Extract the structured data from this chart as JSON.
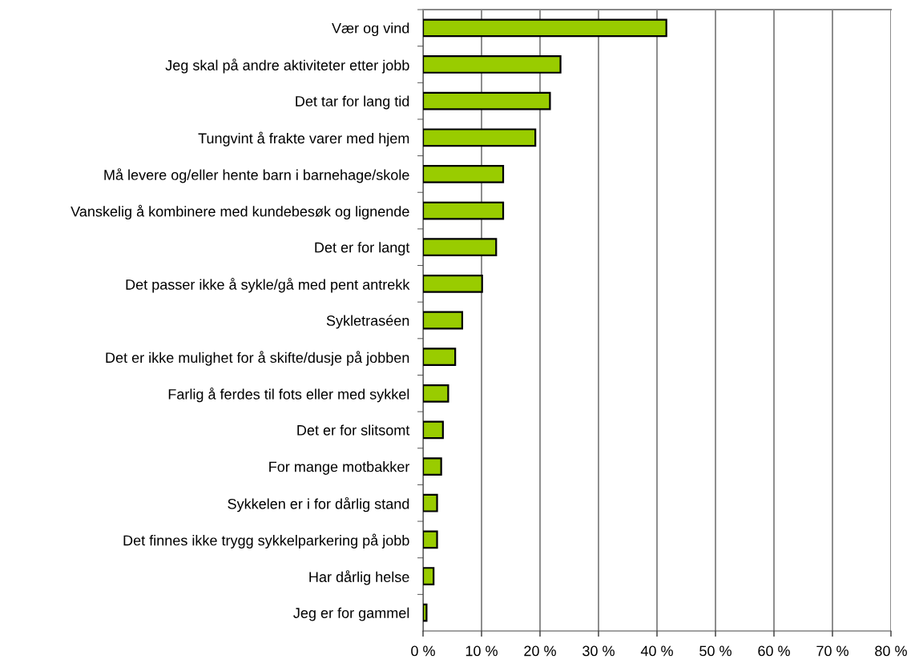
{
  "chart_data": {
    "type": "bar",
    "orientation": "horizontal",
    "categories": [
      "Vær og vind",
      "Jeg skal på andre aktiviteter etter jobb",
      "Det tar for lang tid",
      "Tungvint å frakte varer med hjem",
      "Må levere og/eller hente barn i barnehage/skole",
      "Vanskelig å kombinere med kundebesøk og lignende",
      "Det er for langt",
      "Det passer ikke å sykle/gå med pent antrekk",
      "Sykletraséen",
      "Det er ikke mulighet for å skifte/dusje på jobben",
      "Farlig å ferdes til fots eller med sykkel",
      "Det er for slitsomt",
      "For mange motbakker",
      "Sykkelen er i for dårlig stand",
      "Det finnes ikke trygg sykkelparkering på jobb",
      "Har dårlig helse",
      "Jeg er for gammel"
    ],
    "values": [
      41.6,
      23.5,
      21.7,
      19.2,
      13.7,
      13.7,
      12.5,
      10.1,
      6.7,
      5.5,
      4.3,
      3.4,
      3.1,
      2.4,
      2.4,
      1.8,
      0.6
    ],
    "color": "#99cc00",
    "xlim": [
      0,
      80
    ],
    "xticks": [
      {
        "value": 0,
        "label": "0 %"
      },
      {
        "value": 10,
        "label": "10 %"
      },
      {
        "value": 20,
        "label": "20 %"
      },
      {
        "value": 30,
        "label": "30 %"
      },
      {
        "value": 40,
        "label": "40 %"
      },
      {
        "value": 50,
        "label": "50 %"
      },
      {
        "value": 60,
        "label": "60 %"
      },
      {
        "value": 70,
        "label": "70 %"
      },
      {
        "value": 80,
        "label": "80 %"
      }
    ],
    "grid": "x",
    "legend": false
  }
}
